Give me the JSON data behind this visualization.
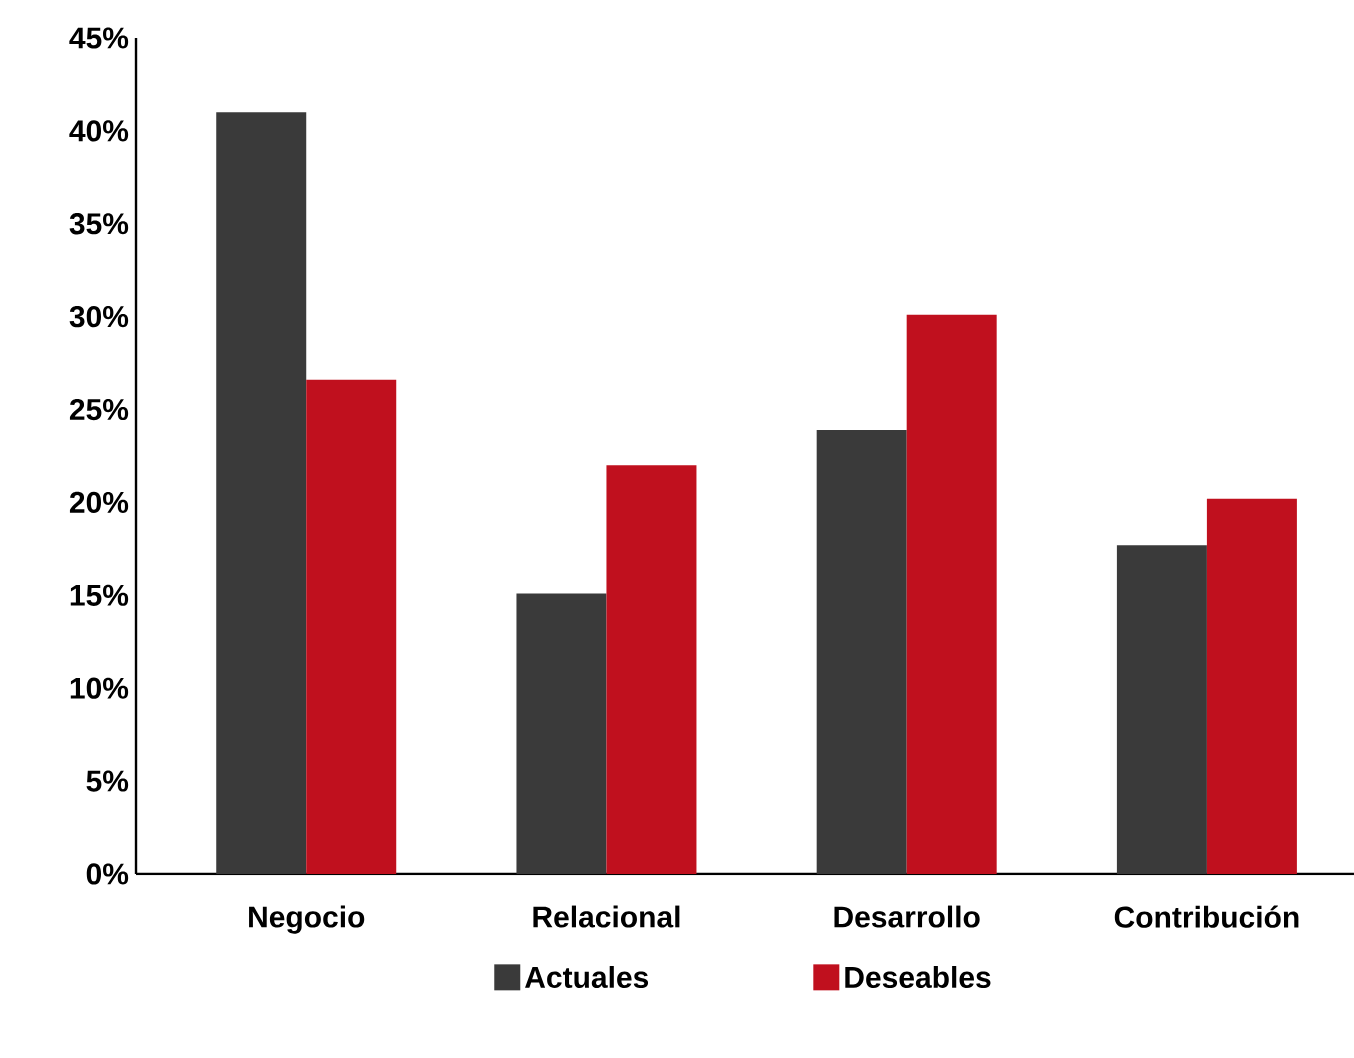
{
  "chart_data": {
    "type": "bar",
    "categories": [
      "Negocio",
      "Relacional",
      "Desarrollo",
      "Contribución"
    ],
    "series": [
      {
        "name": "Actuales",
        "color": "#3a3a3a",
        "values": [
          41.0,
          15.1,
          23.9,
          17.7
        ]
      },
      {
        "name": "Deseables",
        "color": "#c0101e",
        "values": [
          26.6,
          22.0,
          30.1,
          20.2
        ]
      }
    ],
    "ylim": [
      0,
      45
    ],
    "yticks": [
      {
        "value": 0,
        "label": "0%"
      },
      {
        "value": 5,
        "label": "5%"
      },
      {
        "value": 10,
        "label": "10%"
      },
      {
        "value": 15,
        "label": "15%"
      },
      {
        "value": 20,
        "label": "20%"
      },
      {
        "value": 25,
        "label": "25%"
      },
      {
        "value": 30,
        "label": "30%"
      },
      {
        "value": 35,
        "label": "35%"
      },
      {
        "value": 40,
        "label": "40%"
      },
      {
        "value": 45,
        "label": "45%"
      }
    ],
    "grid": false,
    "legend": "bottom"
  }
}
